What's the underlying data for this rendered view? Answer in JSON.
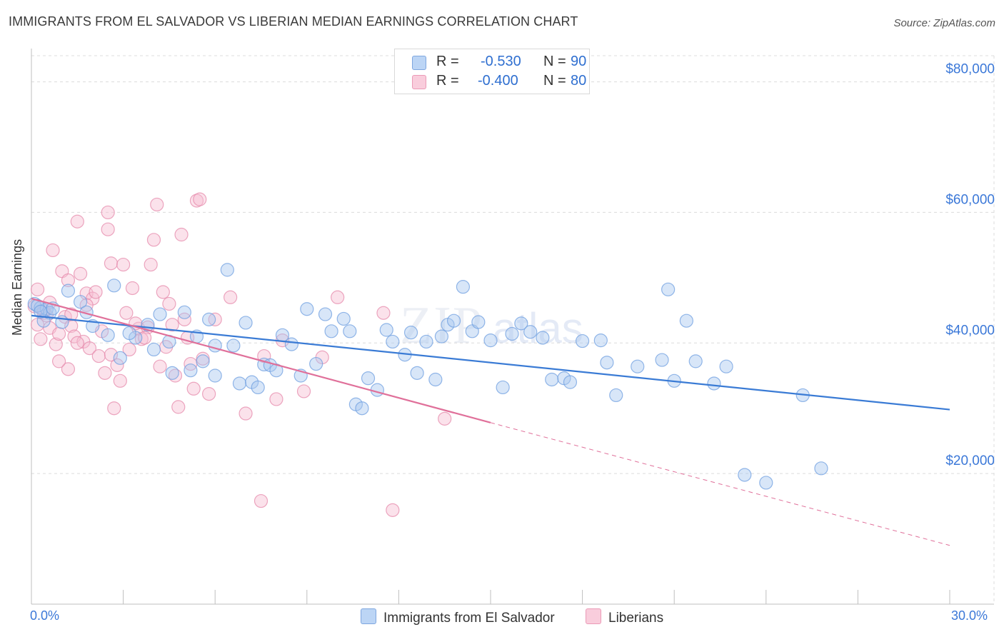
{
  "title": "IMMIGRANTS FROM EL SALVADOR VS LIBERIAN MEDIAN EARNINGS CORRELATION CHART",
  "source": "Source: ZipAtlas.com",
  "legend": {
    "r_label": "R =",
    "n_label": "N =",
    "rows": [
      {
        "r": "-0.530",
        "n": "90",
        "color": "#8fb4ea"
      },
      {
        "r": "-0.400",
        "n": "80",
        "color": "#f3a8c2"
      }
    ]
  },
  "colors": {
    "blue": "#3a7bd5",
    "pink": "#e0709a",
    "blue_fill": "#a9c8f0",
    "pink_fill": "#f6bfd3"
  },
  "chart_data": {
    "type": "scatter",
    "title": "IMMIGRANTS FROM EL SALVADOR VS LIBERIAN MEDIAN EARNINGS CORRELATION CHART",
    "xlabel": "",
    "ylabel": "Median Earnings",
    "xlim": [
      0,
      30
    ],
    "ylim": [
      0,
      84000
    ],
    "x_tick_labels": [
      "0.0%",
      "30.0%"
    ],
    "y_ticks": [
      20000,
      40000,
      60000,
      80000
    ],
    "y_tick_labels": [
      "$20,000",
      "$40,000",
      "$60,000",
      "$80,000"
    ],
    "grid": true,
    "legend_position": "top-center",
    "series": [
      {
        "name": "Immigrants from El Salvador",
        "color": "#3a7bd5",
        "trend": {
          "x0": 0,
          "y0": 44200,
          "x1": 30,
          "y1": 29800
        },
        "points": [
          [
            0.1,
            46000
          ],
          [
            0.3,
            45400
          ],
          [
            0.5,
            45200
          ],
          [
            0.6,
            44600
          ],
          [
            0.4,
            43400
          ],
          [
            1.2,
            48000
          ],
          [
            1.6,
            46300
          ],
          [
            1.8,
            44700
          ],
          [
            2.0,
            42600
          ],
          [
            2.5,
            41200
          ],
          [
            2.7,
            48800
          ],
          [
            3.4,
            40800
          ],
          [
            3.8,
            42800
          ],
          [
            4.0,
            39000
          ],
          [
            4.2,
            44400
          ],
          [
            4.5,
            40200
          ],
          [
            4.6,
            35400
          ],
          [
            5.0,
            44700
          ],
          [
            5.2,
            35800
          ],
          [
            5.4,
            41000
          ],
          [
            5.6,
            37200
          ],
          [
            5.8,
            43600
          ],
          [
            6.0,
            35000
          ],
          [
            6.0,
            39600
          ],
          [
            6.4,
            51200
          ],
          [
            6.6,
            39600
          ],
          [
            6.8,
            33800
          ],
          [
            7.0,
            43100
          ],
          [
            7.2,
            34000
          ],
          [
            7.4,
            33200
          ],
          [
            7.6,
            36700
          ],
          [
            7.8,
            36600
          ],
          [
            8.0,
            35800
          ],
          [
            8.2,
            41200
          ],
          [
            8.5,
            39800
          ],
          [
            8.8,
            35000
          ],
          [
            9.0,
            45200
          ],
          [
            9.3,
            36800
          ],
          [
            9.6,
            44400
          ],
          [
            9.8,
            41800
          ],
          [
            10.2,
            43700
          ],
          [
            10.4,
            41800
          ],
          [
            10.6,
            30600
          ],
          [
            10.8,
            30000
          ],
          [
            11.0,
            34600
          ],
          [
            11.3,
            32800
          ],
          [
            11.6,
            42000
          ],
          [
            11.8,
            40200
          ],
          [
            12.2,
            38200
          ],
          [
            12.4,
            41600
          ],
          [
            12.6,
            35400
          ],
          [
            12.9,
            40200
          ],
          [
            13.2,
            34400
          ],
          [
            13.4,
            41000
          ],
          [
            13.6,
            42800
          ],
          [
            13.8,
            43400
          ],
          [
            14.1,
            48600
          ],
          [
            14.4,
            41800
          ],
          [
            14.6,
            43200
          ],
          [
            15.0,
            40400
          ],
          [
            15.4,
            33200
          ],
          [
            15.7,
            41400
          ],
          [
            16.0,
            43000
          ],
          [
            16.3,
            41700
          ],
          [
            16.7,
            40800
          ],
          [
            17.0,
            34400
          ],
          [
            17.4,
            34600
          ],
          [
            17.6,
            34000
          ],
          [
            18.0,
            40300
          ],
          [
            18.6,
            40400
          ],
          [
            18.8,
            37000
          ],
          [
            19.1,
            32000
          ],
          [
            19.8,
            36400
          ],
          [
            20.6,
            37400
          ],
          [
            20.8,
            48200
          ],
          [
            21.0,
            34200
          ],
          [
            21.4,
            43400
          ],
          [
            21.7,
            37200
          ],
          [
            22.3,
            33800
          ],
          [
            22.7,
            36400
          ],
          [
            23.3,
            19800
          ],
          [
            24.0,
            18600
          ],
          [
            25.2,
            32000
          ],
          [
            25.8,
            20800
          ],
          [
            0.2,
            45700
          ],
          [
            0.3,
            44800
          ],
          [
            0.7,
            45300
          ],
          [
            2.9,
            37700
          ],
          [
            3.2,
            41500
          ],
          [
            1.0,
            43200
          ]
        ]
      },
      {
        "name": "Liberians",
        "color": "#e0709a",
        "trend": {
          "x0": 0,
          "y0": 46800,
          "x1": 15,
          "y1": 27800
        },
        "trend_ext": {
          "x0": 15,
          "y0": 27800,
          "x1": 30,
          "y1": 9000
        },
        "points": [
          [
            0.2,
            48200
          ],
          [
            0.2,
            42800
          ],
          [
            0.3,
            40600
          ],
          [
            0.4,
            44600
          ],
          [
            0.5,
            44200
          ],
          [
            0.6,
            42300
          ],
          [
            0.7,
            54200
          ],
          [
            0.8,
            39800
          ],
          [
            0.9,
            41400
          ],
          [
            1.0,
            51000
          ],
          [
            1.1,
            44000
          ],
          [
            1.2,
            49600
          ],
          [
            1.2,
            36000
          ],
          [
            1.3,
            42600
          ],
          [
            1.4,
            41000
          ],
          [
            1.5,
            58600
          ],
          [
            1.6,
            50600
          ],
          [
            1.7,
            40200
          ],
          [
            1.8,
            47600
          ],
          [
            1.9,
            39200
          ],
          [
            2.0,
            46800
          ],
          [
            2.1,
            47800
          ],
          [
            2.2,
            38000
          ],
          [
            2.4,
            35400
          ],
          [
            2.5,
            57400
          ],
          [
            2.5,
            60000
          ],
          [
            2.6,
            52200
          ],
          [
            2.7,
            30000
          ],
          [
            2.8,
            36600
          ],
          [
            2.9,
            34200
          ],
          [
            3.0,
            52000
          ],
          [
            3.1,
            44600
          ],
          [
            3.2,
            39000
          ],
          [
            3.3,
            48400
          ],
          [
            3.5,
            42200
          ],
          [
            3.6,
            40600
          ],
          [
            3.8,
            42400
          ],
          [
            3.9,
            52000
          ],
          [
            4.0,
            55800
          ],
          [
            4.1,
            61200
          ],
          [
            4.2,
            36400
          ],
          [
            4.3,
            47800
          ],
          [
            4.4,
            39400
          ],
          [
            4.5,
            46000
          ],
          [
            4.7,
            35000
          ],
          [
            4.8,
            30200
          ],
          [
            4.9,
            56600
          ],
          [
            5.0,
            43600
          ],
          [
            5.1,
            40800
          ],
          [
            5.3,
            33000
          ],
          [
            5.4,
            61800
          ],
          [
            5.5,
            62000
          ],
          [
            5.6,
            37600
          ],
          [
            5.8,
            32200
          ],
          [
            6.0,
            43600
          ],
          [
            6.5,
            47000
          ],
          [
            7.0,
            29200
          ],
          [
            7.5,
            15800
          ],
          [
            7.6,
            38000
          ],
          [
            8.0,
            31400
          ],
          [
            8.2,
            40400
          ],
          [
            8.9,
            32600
          ],
          [
            9.5,
            37800
          ],
          [
            10.0,
            47000
          ],
          [
            11.5,
            44600
          ],
          [
            11.8,
            14400
          ],
          [
            13.5,
            28400
          ],
          [
            0.1,
            45600
          ],
          [
            0.4,
            45000
          ],
          [
            0.6,
            46200
          ],
          [
            1.3,
            44400
          ],
          [
            1.8,
            45800
          ],
          [
            2.3,
            41800
          ],
          [
            3.4,
            43000
          ],
          [
            4.6,
            42800
          ],
          [
            0.9,
            37200
          ],
          [
            1.5,
            40000
          ],
          [
            2.6,
            38200
          ],
          [
            3.7,
            40800
          ],
          [
            5.2,
            36800
          ]
        ]
      }
    ]
  }
}
